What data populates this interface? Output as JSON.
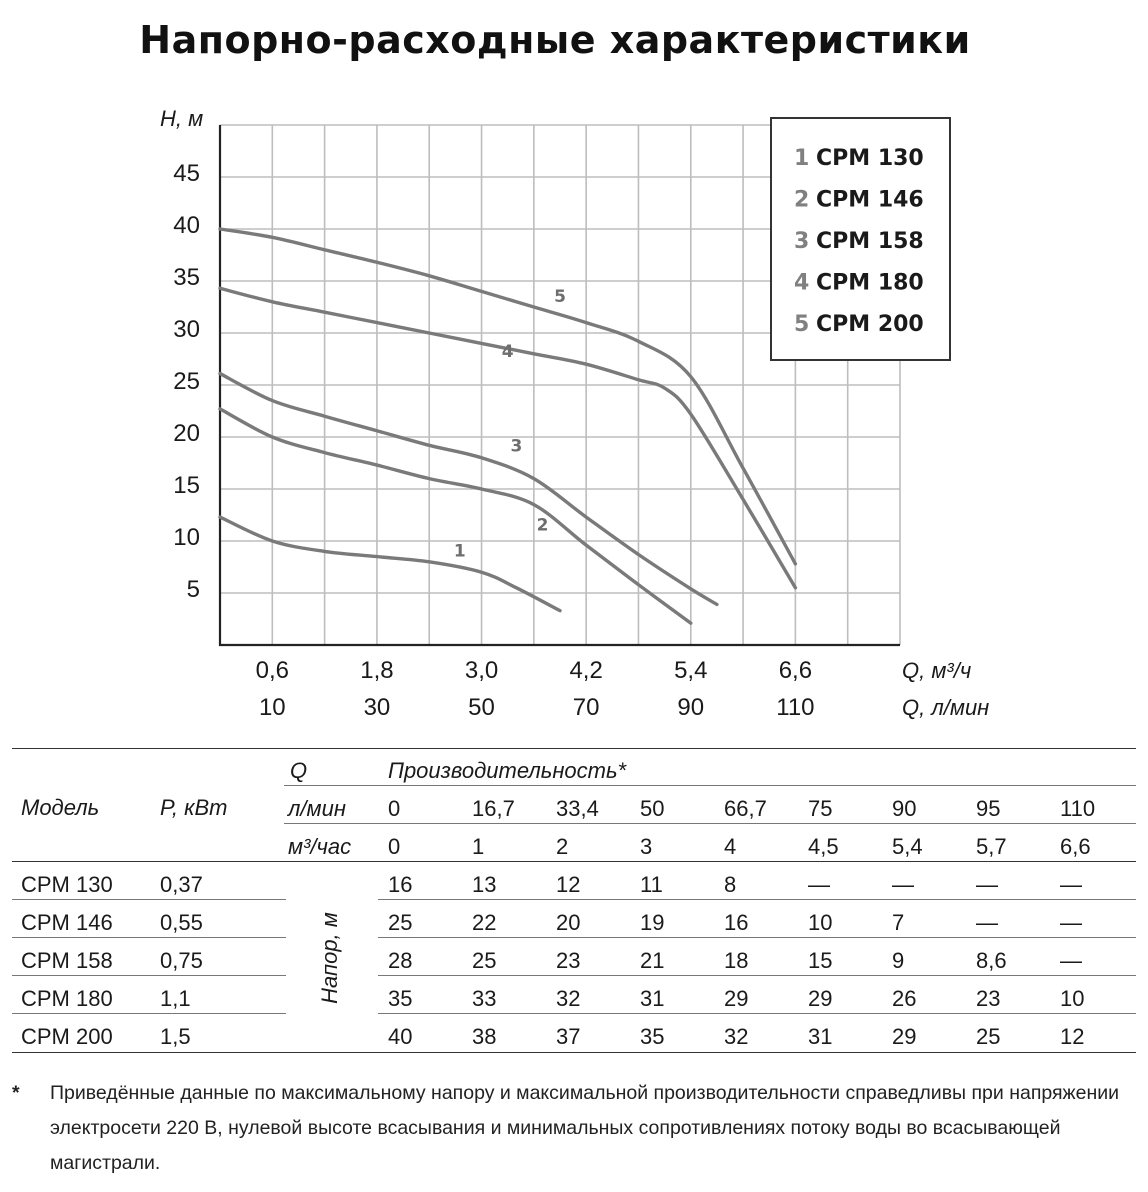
{
  "title": "Напорно-расходные характеристики",
  "chart_data": {
    "type": "line",
    "ylabel": "H, м",
    "xlabel_m3h": "Q, м³/ч",
    "xlabel_lmin": "Q, л/мин",
    "ylim": [
      0,
      50
    ],
    "xlim_m3h": [
      0,
      7.8
    ],
    "y_ticks": [
      "45",
      "40",
      "35",
      "30",
      "25",
      "20",
      "15",
      "10",
      "5"
    ],
    "y_tick_values": [
      45,
      40,
      35,
      30,
      25,
      20,
      15,
      10,
      5
    ],
    "x_ticks_m3h": [
      "0,6",
      "1,8",
      "3,0",
      "4,2",
      "5,4",
      "6,6"
    ],
    "x_ticks_lmin": [
      "10",
      "30",
      "50",
      "70",
      "90",
      "110"
    ],
    "x_tick_values": [
      0.6,
      1.8,
      3.0,
      4.2,
      5.4,
      6.6
    ],
    "grid": true,
    "legend_position": "top-right",
    "legend": [
      {
        "num": "1",
        "name": "CPM 130"
      },
      {
        "num": "2",
        "name": "CPM 146"
      },
      {
        "num": "3",
        "name": "CPM 158"
      },
      {
        "num": "4",
        "name": "CPM 180"
      },
      {
        "num": "5",
        "name": "CPM 200"
      }
    ],
    "series": [
      {
        "name": "1",
        "x": [
          0,
          0.6,
          1.2,
          1.8,
          2.4,
          3.0,
          3.4,
          3.9
        ],
        "y": [
          12.3,
          10.0,
          9.0,
          8.5,
          8.0,
          7.0,
          5.5,
          3.3
        ]
      },
      {
        "name": "2",
        "x": [
          0,
          0.6,
          1.2,
          1.8,
          2.4,
          3.0,
          3.6,
          4.2,
          4.8,
          5.4
        ],
        "y": [
          22.7,
          20.0,
          18.5,
          17.3,
          16.0,
          15.0,
          13.5,
          9.6,
          5.8,
          2.1
        ]
      },
      {
        "name": "3",
        "x": [
          0,
          0.6,
          1.2,
          1.8,
          2.4,
          3.0,
          3.6,
          4.2,
          4.8,
          5.4,
          5.7
        ],
        "y": [
          26.1,
          23.5,
          22.0,
          20.6,
          19.2,
          18.0,
          16.0,
          12.3,
          8.7,
          5.4,
          3.9
        ]
      },
      {
        "name": "4",
        "x": [
          0,
          0.6,
          1.2,
          1.8,
          2.4,
          3.0,
          3.6,
          4.2,
          4.8,
          5.1,
          5.4,
          6.0,
          6.6
        ],
        "y": [
          34.3,
          33.0,
          32.0,
          31.0,
          30.0,
          29.0,
          28.0,
          27.0,
          25.5,
          24.7,
          22.2,
          14.0,
          5.5
        ]
      },
      {
        "name": "5",
        "x": [
          0,
          0.6,
          1.2,
          1.8,
          2.4,
          3.0,
          3.6,
          4.2,
          4.8,
          5.4,
          6.0,
          6.6
        ],
        "y": [
          40.0,
          39.2,
          38.0,
          36.8,
          35.5,
          34.0,
          32.5,
          31.0,
          29.2,
          25.8,
          17.0,
          7.8
        ]
      }
    ],
    "series_labels": [
      {
        "text": "1",
        "x": 2.75,
        "y": 8.5
      },
      {
        "text": "2",
        "x": 3.7,
        "y": 11.0
      },
      {
        "text": "3",
        "x": 3.4,
        "y": 18.6
      },
      {
        "text": "4",
        "x": 3.3,
        "y": 27.7
      },
      {
        "text": "5",
        "x": 3.9,
        "y": 33.0
      }
    ]
  },
  "table": {
    "header": {
      "model": "Модель",
      "power": "P, кВт",
      "q": "Q",
      "productivity": "Производительность*",
      "lmin_label": "л/мин",
      "m3h_label": "м³/час",
      "head_label": "Напор, м"
    },
    "lmin": [
      "0",
      "16,7",
      "33,4",
      "50",
      "66,7",
      "75",
      "90",
      "95",
      "110"
    ],
    "m3h": [
      "0",
      "1",
      "2",
      "3",
      "4",
      "4,5",
      "5,4",
      "5,7",
      "6,6"
    ],
    "rows": [
      {
        "model": "CPM 130",
        "power": "0,37",
        "values": [
          "16",
          "13",
          "12",
          "11",
          "8",
          "—",
          "—",
          "—",
          "—"
        ]
      },
      {
        "model": "CPM 146",
        "power": "0,55",
        "values": [
          "25",
          "22",
          "20",
          "19",
          "16",
          "10",
          "7",
          "—",
          "—"
        ]
      },
      {
        "model": "CPM 158",
        "power": "0,75",
        "values": [
          "28",
          "25",
          "23",
          "21",
          "18",
          "15",
          "9",
          "8,6",
          "—"
        ]
      },
      {
        "model": "CPM 180",
        "power": "1,1",
        "values": [
          "35",
          "33",
          "32",
          "31",
          "29",
          "29",
          "26",
          "23",
          "10"
        ]
      },
      {
        "model": "CPM 200",
        "power": "1,5",
        "values": [
          "40",
          "38",
          "37",
          "35",
          "32",
          "31",
          "29",
          "25",
          "12"
        ]
      }
    ]
  },
  "footnote": {
    "star": "*",
    "text": "Приведённые данные по максимальному напору и максимальной производительности справедливы при напряжении электросети 220 В, нулевой высоте всасывания и минимальных сопротивлениях потоку воды во всасывающей магистрали."
  }
}
